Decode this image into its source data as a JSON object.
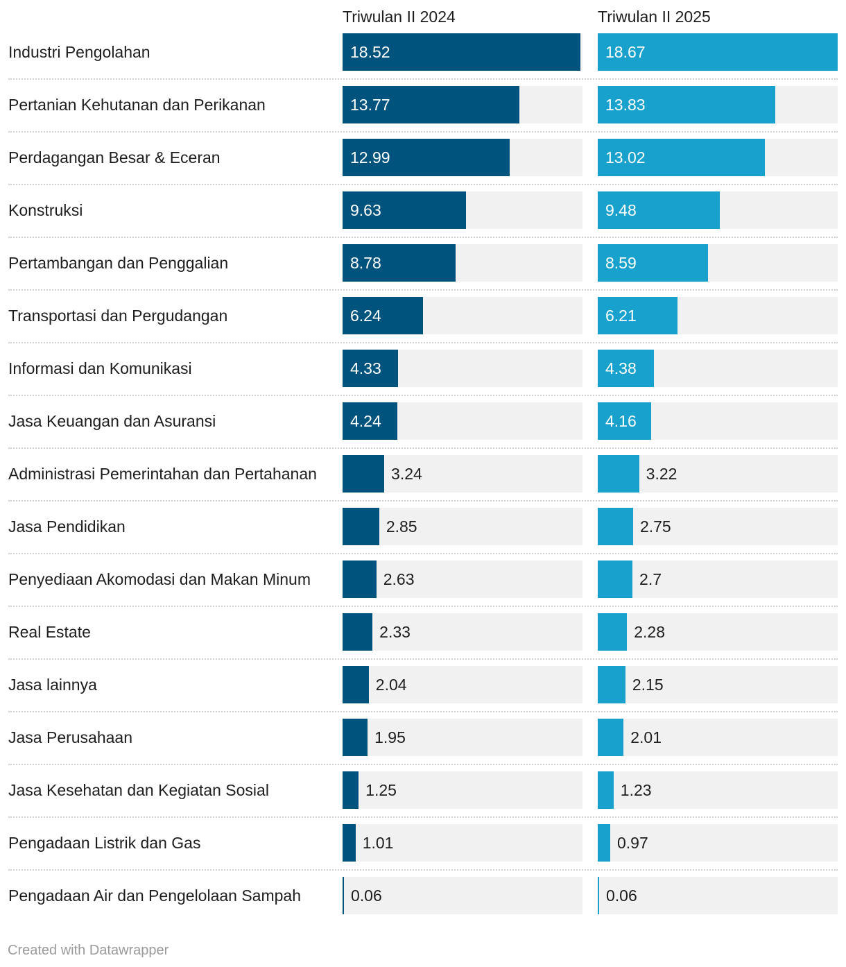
{
  "chart_data": {
    "type": "bar",
    "orientation": "horizontal",
    "layout": "small-multiples",
    "categories": [
      "Industri Pengolahan",
      "Pertanian Kehutanan dan Perikanan",
      "Perdagangan Besar & Eceran",
      "Konstruksi",
      "Pertambangan dan Penggalian",
      "Transportasi dan Pergudangan",
      "Informasi dan Komunikasi",
      "Jasa Keuangan dan Asuransi",
      "Administrasi Pemerintahan dan Pertahanan",
      "Jasa Pendidikan",
      "Penyediaan Akomodasi dan Makan Minum",
      "Real Estate",
      "Jasa lainnya",
      "Jasa Perusahaan",
      "Jasa Kesehatan dan Kegiatan Sosial",
      "Pengadaan Listrik dan Gas",
      "Pengadaan Air dan Pengelolaan Sampah"
    ],
    "series": [
      {
        "name": "Triwulan II 2024",
        "color": "#00537c",
        "values": [
          18.52,
          13.77,
          12.99,
          9.63,
          8.78,
          6.24,
          4.33,
          4.24,
          3.24,
          2.85,
          2.63,
          2.33,
          2.04,
          1.95,
          1.25,
          1.01,
          0.06
        ]
      },
      {
        "name": "Triwulan II 2025",
        "color": "#18a1cd",
        "values": [
          18.67,
          13.83,
          13.02,
          9.48,
          8.59,
          6.21,
          4.38,
          4.16,
          3.22,
          2.75,
          2.7,
          2.28,
          2.15,
          2.01,
          1.23,
          0.97,
          0.06
        ]
      }
    ],
    "value_labels": {
      "Triwulan II 2024": [
        "18.52",
        "13.77",
        "12.99",
        "9.63",
        "8.78",
        "6.24",
        "4.33",
        "4.24",
        "3.24",
        "2.85",
        "2.63",
        "2.33",
        "2.04",
        "1.95",
        "1.25",
        "1.01",
        "0.06"
      ],
      "Triwulan II 2025": [
        "18.67",
        "13.83",
        "13.02",
        "9.48",
        "8.59",
        "6.21",
        "4.38",
        "4.16",
        "3.22",
        "2.75",
        "2.7",
        "2.28",
        "2.15",
        "2.01",
        "1.23",
        "0.97",
        "0.06"
      ]
    },
    "xlim": [
      0,
      18.67
    ],
    "title": "",
    "xlabel": "",
    "ylabel": "",
    "grid": false,
    "legend": "column-headers-top"
  },
  "colors": {
    "track": "#f1f1f1",
    "text": "#1d1d1d",
    "footer": "#9a9a9a"
  },
  "footer": {
    "credit": "Created with Datawrapper"
  }
}
